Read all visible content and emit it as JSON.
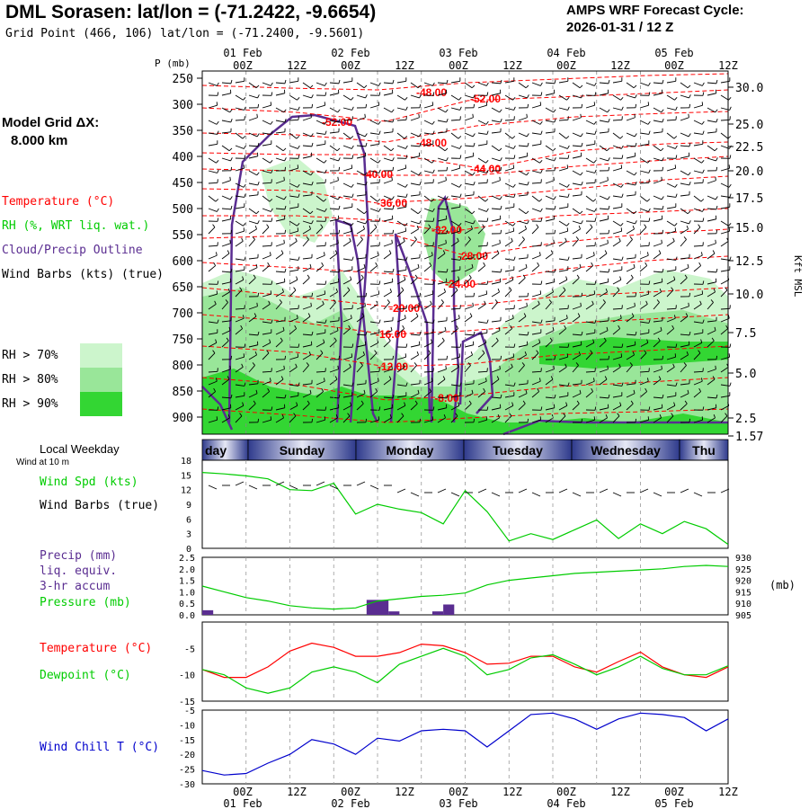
{
  "header": {
    "title": "DML Sorasen:  lat/lon = (-71.2422, -9.6654)",
    "grid_point": "Grid Point (466, 106) lat/lon = (-71.2400, -9.5601)",
    "cycle_line1": "AMPS WRF Forecast Cycle:",
    "cycle_line2": "2026-01-31 / 12  Z"
  },
  "left_panel": {
    "model_grid_line1": "Model Grid ΔX:",
    "model_grid_line2": "8.000 km",
    "legend_temperature": "Temperature (°C)",
    "legend_rh": "RH (%, WRT liq. wat.)",
    "legend_cloud": "Cloud/Precip Outline",
    "legend_wind": "Wind Barbs (kts) (true)",
    "rh70": "RH > 70%",
    "rh80": "RH > 80%",
    "rh90": "RH > 90%",
    "local_weekday": "Local Weekday",
    "wind_at_10m": "Wind at 10 m",
    "wind_spd": "Wind Spd (kts)",
    "wind_barbs": "Wind Barbs (true)",
    "precip1": "Precip (mm)",
    "precip2": "liq. equiv.",
    "precip3": "3-hr accum",
    "pressure": "Pressure (mb)",
    "temperature": "Temperature (°C)",
    "dewpoint": "Dewpoint (°C)",
    "windchill": "Wind Chill T (°C)"
  },
  "colors": {
    "temperature": "#ff0000",
    "dewpoint": "#00cc00",
    "cloud": "#5a2d91",
    "windchill": "#0000cc",
    "rh70": "#ccf5cc",
    "rh80": "#99e699",
    "rh90": "#33d633",
    "weekday_dark": "#2e3a8c",
    "weekday_light": "#e6e8f5"
  },
  "chart_data": [
    {
      "type": "area",
      "name": "cross-section",
      "ylabel": "P (mb)",
      "ylabel_right": "Kft MSL",
      "pressure_ticks": [
        "250",
        "300",
        "350",
        "400",
        "450",
        "500",
        "550",
        "600",
        "650",
        "700",
        "750",
        "800",
        "850",
        "900"
      ],
      "kft_ticks": [
        "30.0",
        "25.0",
        "22.5",
        "20.0",
        "17.5",
        "15.0",
        "12.5",
        "10.0",
        "7.5",
        "5.0",
        "2.5",
        "1.57"
      ],
      "top_time_labels": [
        "00Z",
        "12Z",
        "00Z",
        "12Z",
        "00Z",
        "12Z",
        "00Z",
        "12Z",
        "00Z",
        "12Z"
      ],
      "top_date_labels": [
        "01 Feb",
        "02 Feb",
        "03 Feb",
        "04 Feb",
        "05 Feb"
      ],
      "temperature_labels": [
        "-48.00",
        "-52.00",
        "-52.00",
        "-48.00",
        "-44.00",
        "-40.00",
        "-36.00",
        "-32.00",
        "-28.00",
        "-24.00",
        "-20.00",
        "-16.00",
        "-12.00",
        "-8.00"
      ]
    },
    {
      "type": "line",
      "name": "wind speed",
      "ylabel": "Wind Spd (kts)",
      "weekdays": [
        "day",
        "Sunday",
        "Monday",
        "Tuesday",
        "Wednesday",
        "Thu"
      ],
      "yticks": [
        "18",
        "15",
        "12",
        "9",
        "6",
        "3",
        "0"
      ],
      "ylim": [
        0,
        18
      ],
      "x_hours": [
        0,
        6,
        12,
        18,
        24,
        30,
        36,
        42,
        48,
        54,
        60,
        66,
        72,
        78,
        84,
        90,
        96,
        102,
        108,
        114,
        120,
        126,
        132,
        138,
        144
      ],
      "values": [
        15.5,
        15.2,
        14.8,
        14.2,
        12.0,
        11.8,
        13.3,
        7.0,
        9.0,
        8.0,
        7.3,
        5.0,
        11.8,
        7.5,
        1.5,
        3.0,
        1.8,
        3.8,
        5.8,
        2.0,
        5.0,
        3.0,
        5.5,
        4.0,
        0.8
      ]
    },
    {
      "type": "bar",
      "name": "precip and pressure",
      "yticks": [
        "2.5",
        "2.0",
        "1.5",
        "1.0",
        "0.5",
        "0.0"
      ],
      "yticks_right": [
        "930",
        "925",
        "920",
        "915",
        "910",
        "905"
      ],
      "ylabel_right": "(mb)",
      "precip_mm": [
        {
          "x_hour": 1.5,
          "value": 0.2
        },
        {
          "x_hour": 46.5,
          "value": 0.65
        },
        {
          "x_hour": 49.5,
          "value": 0.65
        },
        {
          "x_hour": 52.5,
          "value": 0.15
        },
        {
          "x_hour": 64.5,
          "value": 0.15
        },
        {
          "x_hour": 67.5,
          "value": 0.45
        }
      ],
      "pressure_mb": [
        917.5,
        915,
        912.5,
        911,
        909,
        908,
        907.5,
        908,
        911,
        912,
        913,
        913.5,
        914.5,
        918,
        920,
        921,
        922,
        923,
        923.5,
        924,
        924.5,
        925,
        926,
        926.5,
        926
      ],
      "x_hours": [
        0,
        6,
        12,
        18,
        24,
        30,
        36,
        42,
        48,
        54,
        60,
        66,
        72,
        78,
        84,
        90,
        96,
        102,
        108,
        114,
        120,
        126,
        132,
        138,
        144
      ]
    },
    {
      "type": "line",
      "name": "temperature dewpoint",
      "yticks": [
        "-5",
        "-10",
        "-15"
      ],
      "ylim": [
        -15,
        0
      ],
      "series": [
        {
          "name": "Temperature (°C)",
          "values": [
            -9,
            -10.5,
            -10.5,
            -8.5,
            -5.5,
            -4,
            -4.8,
            -6.5,
            -6.5,
            -5.8,
            -4.2,
            -4.5,
            -5.8,
            -8,
            -7.8,
            -6.5,
            -6.5,
            -8.5,
            -9.5,
            -7.5,
            -5.7,
            -8.5,
            -10,
            -10.5,
            -8.5
          ]
        },
        {
          "name": "Dewpoint (°C)",
          "values": [
            -9,
            -10,
            -12.5,
            -13.5,
            -12.5,
            -9.5,
            -8.5,
            -9.5,
            -11.5,
            -8,
            -6.5,
            -5,
            -6.5,
            -10,
            -9,
            -6.8,
            -6.2,
            -8,
            -10,
            -8.5,
            -6.5,
            -8.8,
            -10,
            -10,
            -8.3
          ]
        }
      ],
      "x_hours": [
        0,
        6,
        12,
        18,
        24,
        30,
        36,
        42,
        48,
        54,
        60,
        66,
        72,
        78,
        84,
        90,
        96,
        102,
        108,
        114,
        120,
        126,
        132,
        138,
        144
      ]
    },
    {
      "type": "line",
      "name": "wind chill",
      "ylabel": "Wind Chill T (°C)",
      "yticks": [
        "-5",
        "-10",
        "-15",
        "-20",
        "-25",
        "-30"
      ],
      "ylim": [
        -30,
        -5
      ],
      "values": [
        -25.5,
        -27,
        -26.5,
        -23,
        -20,
        -15,
        -16.5,
        -20,
        -14.5,
        -15.5,
        -12,
        -11.5,
        -12,
        -17.5,
        -12,
        -6.5,
        -6,
        -8,
        -11.5,
        -8,
        -6,
        -6.5,
        -7.5,
        -12,
        -8
      ],
      "x_hours": [
        0,
        6,
        12,
        18,
        24,
        30,
        36,
        42,
        48,
        54,
        60,
        66,
        72,
        78,
        84,
        90,
        96,
        102,
        108,
        114,
        120,
        126,
        132,
        138,
        144
      ],
      "bottom_time_labels": [
        "00Z",
        "12Z",
        "00Z",
        "12Z",
        "00Z",
        "12Z",
        "00Z",
        "12Z",
        "00Z",
        "12Z"
      ],
      "bottom_date_labels": [
        "01 Feb",
        "02 Feb",
        "03 Feb",
        "04 Feb",
        "05 Feb"
      ]
    }
  ]
}
